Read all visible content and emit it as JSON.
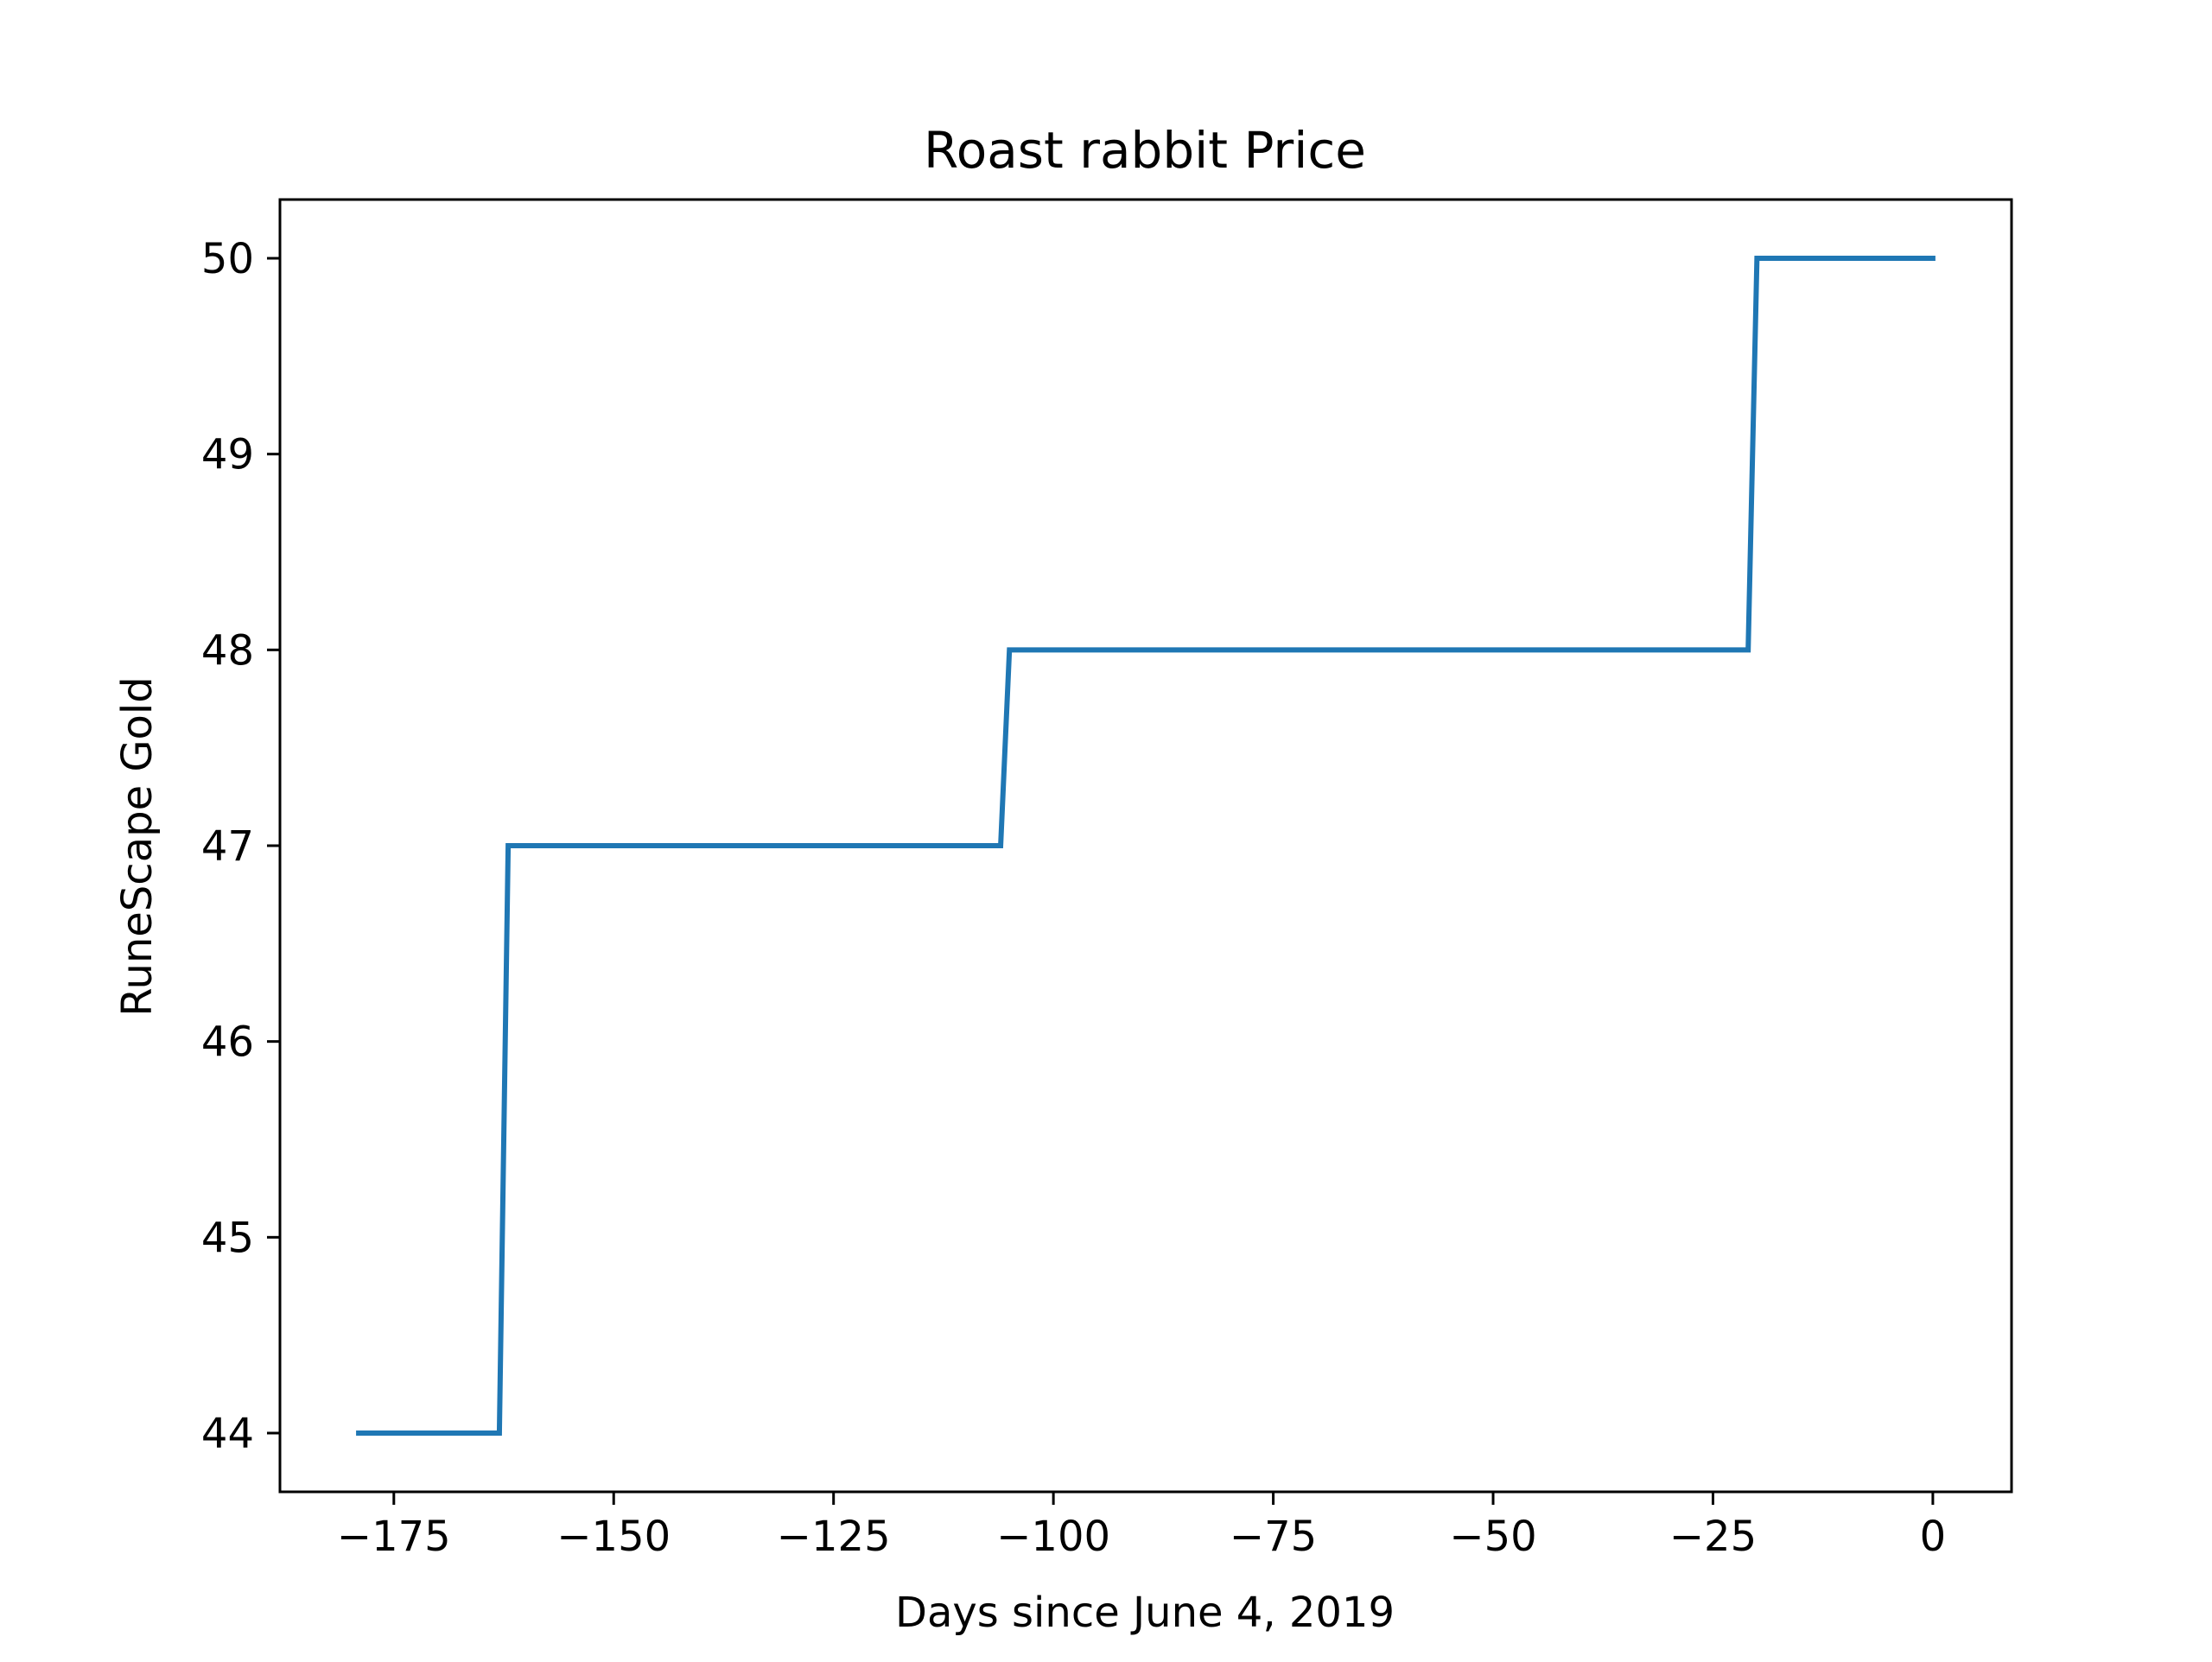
{
  "chart_data": {
    "type": "line",
    "title": "Roast rabbit Price",
    "xlabel": "Days since June 4, 2019",
    "ylabel": "RuneScape Gold",
    "xlim": [
      -187.95,
      8.95
    ],
    "ylim": [
      43.7,
      50.3
    ],
    "xticks": [
      -175,
      -150,
      -125,
      -100,
      -75,
      -50,
      -25,
      0
    ],
    "xtick_labels": [
      "−175",
      "−150",
      "−125",
      "−100",
      "−75",
      "−50",
      "−25",
      "0"
    ],
    "yticks": [
      44,
      45,
      46,
      47,
      48,
      49,
      50
    ],
    "ytick_labels": [
      "44",
      "45",
      "46",
      "47",
      "48",
      "49",
      "50"
    ],
    "grid": false,
    "legend": false,
    "series": [
      {
        "color": "#1f77b4",
        "x": [
          -179,
          -163,
          -162,
          -106,
          -105,
          -21,
          -20,
          0
        ],
        "y": [
          44,
          44,
          47,
          47,
          48,
          48,
          50,
          50
        ]
      }
    ]
  }
}
